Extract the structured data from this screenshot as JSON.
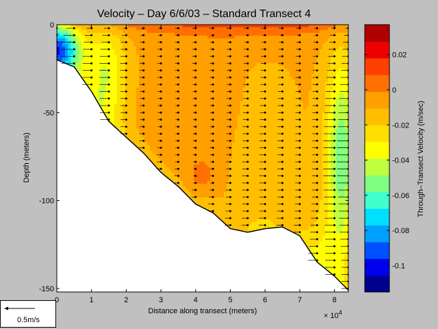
{
  "chart_data": {
    "type": "contour",
    "title": "Velocity – Day 6/6/03 – Standard Transect 4",
    "xlabel": "Distance along transect (meters)",
    "x_exponent_label": "× 10",
    "x_exponent_power": "4",
    "ylabel": "Depth (meters)",
    "colorbar_label": "Through–Transect Velocity (m/sec)",
    "xlim": [
      0,
      8.4
    ],
    "ylim": [
      -152,
      0
    ],
    "x_ticks": [
      "0",
      "1",
      "2",
      "3",
      "4",
      "5",
      "6",
      "7",
      "8"
    ],
    "y_ticks": [
      {
        "value": 0,
        "label": "0"
      },
      {
        "value": -50,
        "label": "-50"
      },
      {
        "value": -100,
        "label": "-100"
      },
      {
        "value": -150,
        "label": "-150"
      }
    ],
    "colorbar_range": [
      -0.115,
      0.037
    ],
    "colorbar_ticks": [
      {
        "value": 0.02,
        "label": "0.02"
      },
      {
        "value": 0,
        "label": "0"
      },
      {
        "value": -0.02,
        "label": "-0.02"
      },
      {
        "value": -0.04,
        "label": "-0.04"
      },
      {
        "value": -0.06,
        "label": "-0.06"
      },
      {
        "value": -0.08,
        "label": "-0.08"
      },
      {
        "value": -0.1,
        "label": "-0.1"
      }
    ],
    "colorbar_colors": [
      "#00008f",
      "#0000ef",
      "#0050ff",
      "#00a0ff",
      "#00dfff",
      "#40ffcf",
      "#80ff80",
      "#bfff40",
      "#ffff00",
      "#ffdf00",
      "#ffbf00",
      "#ff9f00",
      "#ff7000",
      "#ff4000",
      "#ef0000",
      "#af0000"
    ],
    "bottom_profile": [
      {
        "x": 0,
        "depth": -20
      },
      {
        "x": 0.5,
        "depth": -24
      },
      {
        "x": 1,
        "depth": -38
      },
      {
        "x": 1.5,
        "depth": -55
      },
      {
        "x": 2,
        "depth": -64
      },
      {
        "x": 2.5,
        "depth": -73
      },
      {
        "x": 3,
        "depth": -84
      },
      {
        "x": 3.5,
        "depth": -92
      },
      {
        "x": 4,
        "depth": -102
      },
      {
        "x": 4.5,
        "depth": -107
      },
      {
        "x": 5,
        "depth": -116
      },
      {
        "x": 5.5,
        "depth": -118
      },
      {
        "x": 6,
        "depth": -116
      },
      {
        "x": 6.5,
        "depth": -115
      },
      {
        "x": 7,
        "depth": -120
      },
      {
        "x": 7.5,
        "depth": -135
      },
      {
        "x": 8,
        "depth": -143
      },
      {
        "x": 8.4,
        "depth": -151
      }
    ],
    "station_x": [
      0,
      0.5,
      1,
      1.5,
      2,
      2.5,
      3,
      3.5,
      4,
      4.5,
      5,
      5.5,
      6,
      6.5,
      7,
      7.5,
      8,
      8.4
    ],
    "scale_arrow_label": "0.5m/s"
  }
}
